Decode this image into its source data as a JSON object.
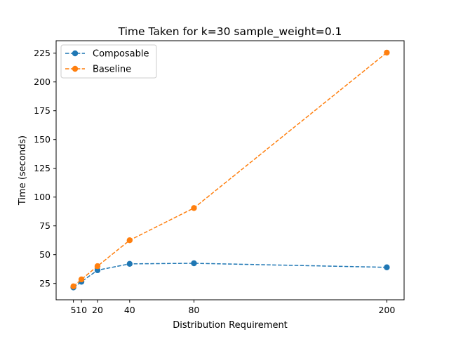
{
  "chart_data": {
    "type": "line",
    "title": "Time Taken for k=30 sample_weight=0.1",
    "xlabel": "Distribution Requirement",
    "ylabel": "Time (seconds)",
    "x": [
      5,
      10,
      20,
      40,
      80,
      200
    ],
    "xticks": [
      5,
      10,
      20,
      40,
      80,
      200
    ],
    "xtick_labels": [
      "5",
      "10",
      "20",
      "40",
      "80",
      "200"
    ],
    "yticks": [
      25,
      50,
      75,
      100,
      125,
      150,
      175,
      200,
      225
    ],
    "yticks_labels": [
      "25",
      "50",
      "75",
      "100",
      "125",
      "150",
      "175",
      "200",
      "225"
    ],
    "xlim": [
      -5.75,
      210.75
    ],
    "ylim": [
      10.8,
      235.8
    ],
    "grid": false,
    "legend_position": "top-left",
    "series": [
      {
        "name": "Composable",
        "color": "#1f77b4",
        "values": [
          21.5,
          26.5,
          36.5,
          42.0,
          42.5,
          39.0
        ]
      },
      {
        "name": "Baseline",
        "color": "#ff7f0e",
        "values": [
          22.5,
          28.5,
          40.0,
          62.5,
          90.5,
          225.5
        ]
      }
    ]
  }
}
